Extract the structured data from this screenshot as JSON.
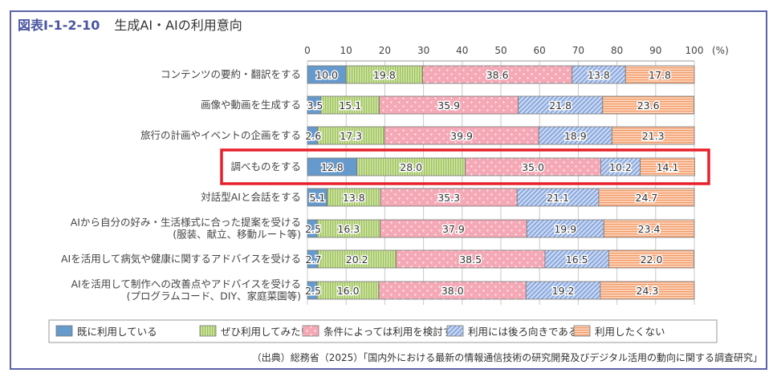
{
  "title": {
    "number": "図表Ⅰ-1-2-10",
    "text": "生成AI・AIの利用意向"
  },
  "source": "（出典）総務省（2025）「国内外における最新の情報通信技術の研究開発及びデジタル活用の動向に関する調査研究」",
  "chart_data": {
    "type": "bar",
    "orientation": "horizontal-stacked-100",
    "title": "生成AI・AIの利用意向",
    "xlim": [
      0,
      100
    ],
    "xticks": [
      0,
      10,
      20,
      30,
      40,
      50,
      60,
      70,
      80,
      90,
      100
    ],
    "xunit": "(%)",
    "grid": true,
    "legend_position": "bottom",
    "categories": [
      [
        "コンテンツの要約・翻訳をする"
      ],
      [
        "画像や動画を生成する"
      ],
      [
        "旅行の計画やイベントの企画をする"
      ],
      [
        "調べものをする"
      ],
      [
        "対話型AIと会話をする"
      ],
      [
        "AIから自分の好み・生活様式に合った提案を受ける",
        "(服装、献立、移動ルート等)"
      ],
      [
        "AIを活用して病気や健康に関するアドバイスを受ける"
      ],
      [
        "AIを活用して制作への改善点やアドバイスを受ける",
        "(プログラムコード、DIY、家庭菜園等)"
      ]
    ],
    "highlighted_category_index": 3,
    "highlight_color": "#e8202a",
    "series": [
      {
        "name": "既に利用している",
        "color": "#6699cc",
        "pattern": "solid",
        "values": [
          10.0,
          3.5,
          2.6,
          12.8,
          5.1,
          2.5,
          2.7,
          2.5
        ]
      },
      {
        "name": "ぜひ利用してみたい",
        "color": "#b5d67a",
        "pattern": "vertical-lines",
        "values": [
          19.8,
          15.1,
          17.3,
          28.0,
          13.8,
          16.3,
          20.2,
          16.0
        ]
      },
      {
        "name": "条件によっては利用を検討する",
        "color": "#f5a9b6",
        "pattern": "dots",
        "values": [
          38.6,
          35.9,
          39.9,
          35.0,
          35.3,
          37.9,
          38.5,
          38.0
        ]
      },
      {
        "name": "利用には後ろ向きである",
        "color": "#a9c2ea",
        "pattern": "diagonal-lines",
        "values": [
          13.8,
          21.8,
          18.9,
          10.2,
          21.1,
          19.9,
          16.5,
          19.2
        ]
      },
      {
        "name": "利用したくない",
        "color": "#f8b48a",
        "pattern": "horizontal-lines",
        "values": [
          17.8,
          23.6,
          21.3,
          14.1,
          24.7,
          23.4,
          22.0,
          24.3
        ]
      }
    ]
  }
}
